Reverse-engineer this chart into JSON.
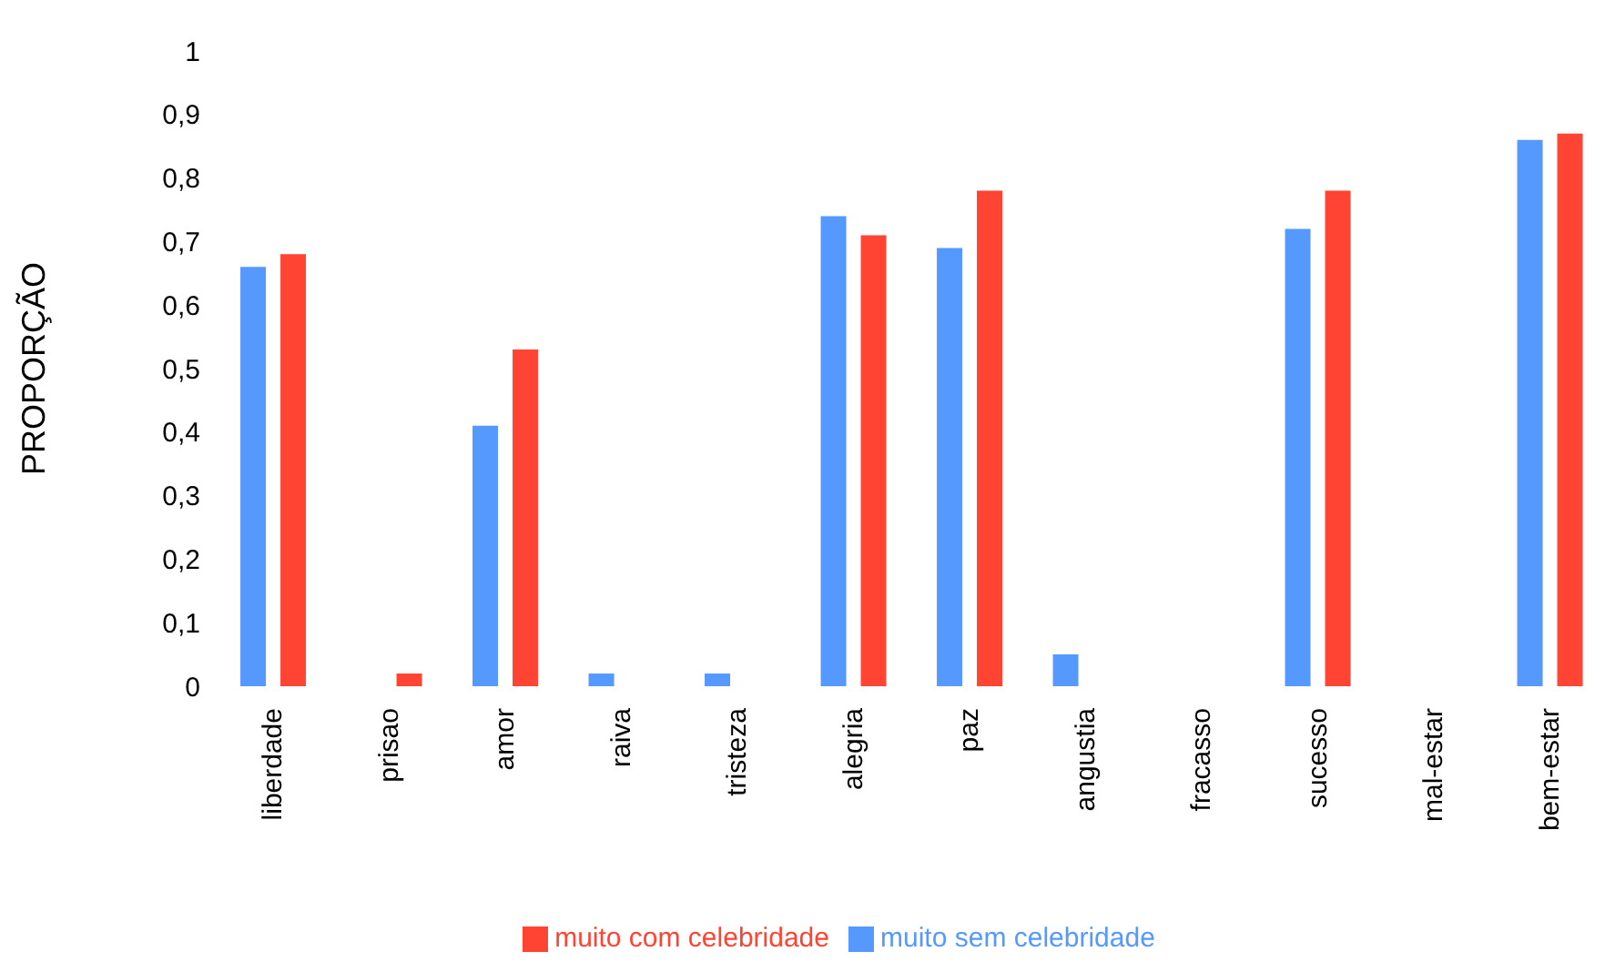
{
  "chart_data": {
    "type": "bar",
    "ylabel": "PROPORÇÃO",
    "categories": [
      "liberdade",
      "prisao",
      "amor",
      "raiva",
      "tristeza",
      "alegria",
      "paz",
      "angustia",
      "fracasso",
      "sucesso",
      "mal-estar",
      "bem-estar"
    ],
    "series": [
      {
        "name": "muito  sem celebridade",
        "color": "#5599ff",
        "values": [
          0.66,
          0,
          0.41,
          0.02,
          0.02,
          0.74,
          0.69,
          0.05,
          0,
          0.72,
          0,
          0.86
        ]
      },
      {
        "name": "muito  com celebridade",
        "color": "#ff4433",
        "values": [
          0.68,
          0.02,
          0.53,
          0,
          0,
          0.71,
          0.78,
          0,
          0,
          0.78,
          0,
          0.87
        ]
      }
    ],
    "ylim": [
      0,
      1
    ],
    "yticks": [
      0,
      {
        "value": 0.1,
        "label": "0,1"
      },
      {
        "value": 0.2,
        "label": "0,2"
      },
      {
        "value": 0.3,
        "label": "0,3"
      },
      {
        "value": 0.4,
        "label": "0,4"
      },
      {
        "value": 0.5,
        "label": "0,5"
      },
      {
        "value": 0.6,
        "label": "0,6"
      },
      {
        "value": 0.7,
        "label": "0,7"
      },
      {
        "value": 0.8,
        "label": "0,8"
      },
      {
        "value": 0.9,
        "label": "0,9"
      },
      1
    ],
    "grid": false,
    "legend": "bottom"
  }
}
